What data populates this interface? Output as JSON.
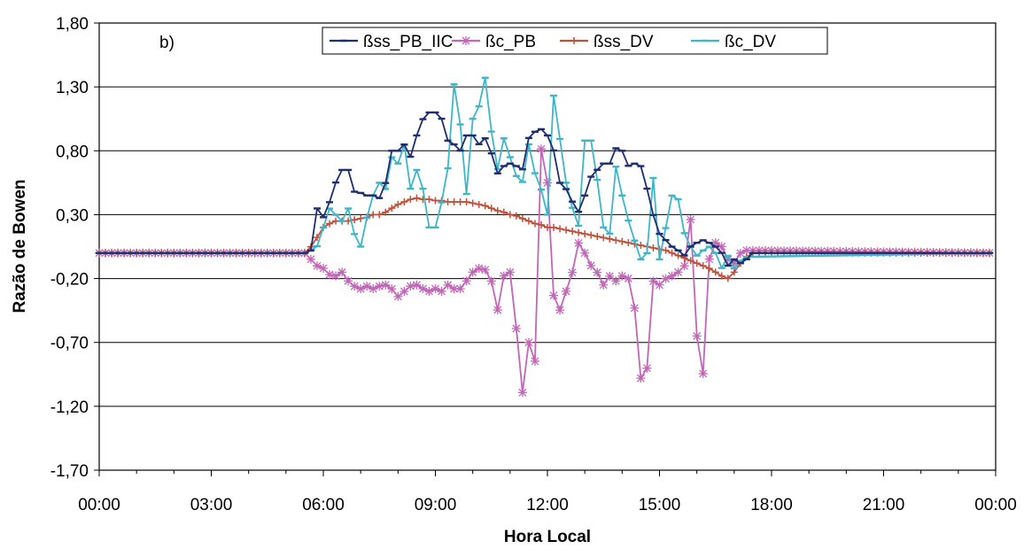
{
  "chart_data": {
    "type": "line",
    "panel_label": "b)",
    "xlabel": "Hora Local",
    "ylabel": "Razão de Bowen",
    "x_ticks": [
      "00:00",
      "03:00",
      "06:00",
      "09:00",
      "12:00",
      "15:00",
      "18:00",
      "21:00",
      "00:00"
    ],
    "y_ticks": [
      "1,80",
      "1,30",
      "0,80",
      "0,30",
      "-0,20",
      "-0,70",
      "-1,20",
      "-1,70"
    ],
    "xlim_hours": [
      0,
      24
    ],
    "ylim": [
      -1.7,
      1.8
    ],
    "grid": "horizontal",
    "legend_position": "top-center",
    "sampling": "10-min intervals, hours from 00:00",
    "series": [
      {
        "name": "ßss_PB_IIC",
        "color": "#1f2e6e",
        "marker": "dash",
        "points": [
          [
            0,
            0
          ],
          [
            5.5,
            0
          ],
          [
            5.67,
            0.02
          ],
          [
            5.83,
            0.35
          ],
          [
            6,
            0.28
          ],
          [
            6.17,
            0.4
          ],
          [
            6.33,
            0.55
          ],
          [
            6.5,
            0.65
          ],
          [
            6.67,
            0.65
          ],
          [
            6.83,
            0.48
          ],
          [
            7,
            0.47
          ],
          [
            7.17,
            0.45
          ],
          [
            7.33,
            0.45
          ],
          [
            7.5,
            0.43
          ],
          [
            7.67,
            0.55
          ],
          [
            7.83,
            0.8
          ],
          [
            8,
            0.8
          ],
          [
            8.17,
            0.85
          ],
          [
            8.33,
            0.75
          ],
          [
            8.5,
            0.92
          ],
          [
            8.67,
            1.05
          ],
          [
            8.83,
            1.1
          ],
          [
            9,
            1.1
          ],
          [
            9.17,
            1.05
          ],
          [
            9.33,
            0.88
          ],
          [
            9.5,
            0.85
          ],
          [
            9.67,
            0.8
          ],
          [
            9.83,
            0.92
          ],
          [
            10,
            0.92
          ],
          [
            10.17,
            0.85
          ],
          [
            10.33,
            0.9
          ],
          [
            10.5,
            0.78
          ],
          [
            10.67,
            0.62
          ],
          [
            10.83,
            0.68
          ],
          [
            11,
            0.7
          ],
          [
            11.17,
            0.68
          ],
          [
            11.33,
            0.65
          ],
          [
            11.5,
            0.9
          ],
          [
            11.67,
            0.95
          ],
          [
            11.83,
            0.97
          ],
          [
            12,
            0.92
          ],
          [
            12.17,
            0.8
          ],
          [
            12.33,
            0.55
          ],
          [
            12.5,
            0.5
          ],
          [
            12.67,
            0.4
          ],
          [
            12.83,
            0.32
          ],
          [
            13,
            0.45
          ],
          [
            13.17,
            0.6
          ],
          [
            13.33,
            0.65
          ],
          [
            13.5,
            0.7
          ],
          [
            13.67,
            0.7
          ],
          [
            13.83,
            0.82
          ],
          [
            14,
            0.8
          ],
          [
            14.17,
            0.68
          ],
          [
            14.33,
            0.7
          ],
          [
            14.5,
            0.68
          ],
          [
            14.67,
            0.5
          ],
          [
            14.83,
            0.3
          ],
          [
            15,
            0.15
          ],
          [
            15.17,
            0.1
          ],
          [
            15.33,
            0.05
          ],
          [
            15.5,
            0.02
          ],
          [
            15.67,
            -0.02
          ],
          [
            15.83,
            0.05
          ],
          [
            16,
            0.08
          ],
          [
            16.17,
            0.1
          ],
          [
            16.33,
            0.08
          ],
          [
            16.5,
            0.05
          ],
          [
            16.67,
            0
          ],
          [
            16.83,
            -0.1
          ],
          [
            17,
            -0.05
          ],
          [
            17.17,
            -0.08
          ],
          [
            17.33,
            -0.05
          ],
          [
            17.5,
            0
          ],
          [
            24,
            0
          ]
        ]
      },
      {
        "name": "ßc_PB",
        "color": "#c266b8",
        "marker": "asterisk",
        "points": [
          [
            0,
            0
          ],
          [
            5.5,
            0
          ],
          [
            5.67,
            -0.05
          ],
          [
            5.83,
            -0.1
          ],
          [
            6,
            -0.12
          ],
          [
            6.17,
            -0.17
          ],
          [
            6.33,
            -0.18
          ],
          [
            6.5,
            -0.15
          ],
          [
            6.67,
            -0.22
          ],
          [
            6.83,
            -0.26
          ],
          [
            7,
            -0.28
          ],
          [
            7.17,
            -0.26
          ],
          [
            7.33,
            -0.28
          ],
          [
            7.5,
            -0.26
          ],
          [
            7.67,
            -0.25
          ],
          [
            7.83,
            -0.28
          ],
          [
            8,
            -0.34
          ],
          [
            8.17,
            -0.3
          ],
          [
            8.33,
            -0.26
          ],
          [
            8.5,
            -0.25
          ],
          [
            8.67,
            -0.28
          ],
          [
            8.83,
            -0.3
          ],
          [
            9,
            -0.28
          ],
          [
            9.17,
            -0.3
          ],
          [
            9.33,
            -0.25
          ],
          [
            9.5,
            -0.28
          ],
          [
            9.67,
            -0.28
          ],
          [
            9.83,
            -0.22
          ],
          [
            10,
            -0.15
          ],
          [
            10.17,
            -0.12
          ],
          [
            10.33,
            -0.13
          ],
          [
            10.5,
            -0.22
          ],
          [
            10.67,
            -0.45
          ],
          [
            10.83,
            -0.18
          ],
          [
            11,
            -0.15
          ],
          [
            11.17,
            -0.6
          ],
          [
            11.33,
            -1.1
          ],
          [
            11.5,
            -0.7
          ],
          [
            11.67,
            -0.85
          ],
          [
            11.83,
            0.82
          ],
          [
            12,
            0.55
          ],
          [
            12.17,
            -0.35
          ],
          [
            12.33,
            -0.45
          ],
          [
            12.5,
            -0.3
          ],
          [
            12.67,
            -0.15
          ],
          [
            12.83,
            0.08
          ],
          [
            13,
            0
          ],
          [
            13.17,
            -0.1
          ],
          [
            13.33,
            -0.15
          ],
          [
            13.5,
            -0.25
          ],
          [
            13.67,
            -0.18
          ],
          [
            13.83,
            -0.22
          ],
          [
            14,
            -0.18
          ],
          [
            14.17,
            -0.2
          ],
          [
            14.33,
            -0.42
          ],
          [
            14.5,
            -0.98
          ],
          [
            14.67,
            -0.9
          ],
          [
            14.83,
            -0.22
          ],
          [
            15,
            -0.25
          ],
          [
            15.17,
            -0.2
          ],
          [
            15.33,
            -0.18
          ],
          [
            15.5,
            -0.15
          ],
          [
            15.67,
            -0.1
          ],
          [
            15.83,
            0.28
          ],
          [
            16,
            -0.65
          ],
          [
            16.17,
            -0.95
          ],
          [
            16.33,
            -0.05
          ],
          [
            16.5,
            0.08
          ],
          [
            16.67,
            0.05
          ],
          [
            16.83,
            -0.05
          ],
          [
            17,
            -0.08
          ],
          [
            17.17,
            0
          ],
          [
            17.33,
            0.02
          ],
          [
            24,
            0
          ]
        ]
      },
      {
        "name": "ßss_DV",
        "color": "#c0503a",
        "marker": "plus",
        "points": [
          [
            0,
            0
          ],
          [
            5.5,
            0
          ],
          [
            5.67,
            0.05
          ],
          [
            5.83,
            0.12
          ],
          [
            6,
            0.2
          ],
          [
            6.17,
            0.23
          ],
          [
            6.33,
            0.25
          ],
          [
            6.5,
            0.25
          ],
          [
            6.67,
            0.25
          ],
          [
            6.83,
            0.26
          ],
          [
            7,
            0.27
          ],
          [
            7.17,
            0.28
          ],
          [
            7.33,
            0.3
          ],
          [
            7.5,
            0.3
          ],
          [
            7.67,
            0.32
          ],
          [
            7.83,
            0.35
          ],
          [
            8,
            0.38
          ],
          [
            8.17,
            0.4
          ],
          [
            8.33,
            0.42
          ],
          [
            8.5,
            0.43
          ],
          [
            8.67,
            0.42
          ],
          [
            8.83,
            0.42
          ],
          [
            9,
            0.41
          ],
          [
            9.17,
            0.41
          ],
          [
            9.33,
            0.4
          ],
          [
            9.5,
            0.4
          ],
          [
            9.67,
            0.4
          ],
          [
            9.83,
            0.4
          ],
          [
            10,
            0.39
          ],
          [
            10.17,
            0.38
          ],
          [
            10.33,
            0.37
          ],
          [
            10.5,
            0.35
          ],
          [
            10.67,
            0.33
          ],
          [
            10.83,
            0.32
          ],
          [
            11,
            0.3
          ],
          [
            11.17,
            0.29
          ],
          [
            11.33,
            0.27
          ],
          [
            11.5,
            0.25
          ],
          [
            11.67,
            0.23
          ],
          [
            11.83,
            0.22
          ],
          [
            12,
            0.2
          ],
          [
            12.17,
            0.2
          ],
          [
            12.33,
            0.19
          ],
          [
            12.5,
            0.18
          ],
          [
            12.67,
            0.17
          ],
          [
            12.83,
            0.16
          ],
          [
            13,
            0.15
          ],
          [
            13.17,
            0.14
          ],
          [
            13.33,
            0.13
          ],
          [
            13.5,
            0.12
          ],
          [
            13.67,
            0.11
          ],
          [
            13.83,
            0.1
          ],
          [
            14,
            0.09
          ],
          [
            14.17,
            0.08
          ],
          [
            14.33,
            0.07
          ],
          [
            14.5,
            0.06
          ],
          [
            14.67,
            0.05
          ],
          [
            14.83,
            0.04
          ],
          [
            15,
            0.03
          ],
          [
            15.17,
            0.02
          ],
          [
            15.33,
            0
          ],
          [
            15.5,
            -0.02
          ],
          [
            15.67,
            -0.04
          ],
          [
            15.83,
            -0.06
          ],
          [
            16,
            -0.08
          ],
          [
            16.17,
            -0.1
          ],
          [
            16.33,
            -0.12
          ],
          [
            16.5,
            -0.15
          ],
          [
            16.67,
            -0.18
          ],
          [
            16.83,
            -0.2
          ],
          [
            17,
            -0.15
          ],
          [
            17.17,
            -0.08
          ],
          [
            17.33,
            -0.03
          ],
          [
            17.5,
            0
          ],
          [
            24,
            0
          ]
        ]
      },
      {
        "name": "ßc_DV",
        "color": "#3fb6c8",
        "marker": "dash",
        "points": [
          [
            0,
            0
          ],
          [
            5.5,
            0
          ],
          [
            5.67,
            0.02
          ],
          [
            5.83,
            0.05
          ],
          [
            6,
            0.2
          ],
          [
            6.17,
            0.35
          ],
          [
            6.33,
            0.3
          ],
          [
            6.5,
            0.25
          ],
          [
            6.67,
            0.35
          ],
          [
            6.83,
            0.15
          ],
          [
            7,
            0.05
          ],
          [
            7.17,
            0.28
          ],
          [
            7.33,
            0.45
          ],
          [
            7.5,
            0.55
          ],
          [
            7.67,
            0.5
          ],
          [
            7.83,
            0.75
          ],
          [
            8,
            0.7
          ],
          [
            8.17,
            0.85
          ],
          [
            8.33,
            0.5
          ],
          [
            8.5,
            0.65
          ],
          [
            8.67,
            0.5
          ],
          [
            8.83,
            0.2
          ],
          [
            9,
            0.2
          ],
          [
            9.17,
            0.4
          ],
          [
            9.33,
            0.65
          ],
          [
            9.5,
            1.32
          ],
          [
            9.67,
            1
          ],
          [
            9.83,
            0.45
          ],
          [
            10,
            1.05
          ],
          [
            10.17,
            1.15
          ],
          [
            10.33,
            1.38
          ],
          [
            10.5,
            0.95
          ],
          [
            10.67,
            0.65
          ],
          [
            10.83,
            0.9
          ],
          [
            11,
            0.75
          ],
          [
            11.17,
            0.6
          ],
          [
            11.33,
            0.55
          ],
          [
            11.5,
            0.85
          ],
          [
            11.67,
            0.62
          ],
          [
            11.83,
            0.5
          ],
          [
            12,
            0.3
          ],
          [
            12.17,
            1.25
          ],
          [
            12.33,
            0.9
          ],
          [
            12.5,
            0.55
          ],
          [
            12.67,
            0.35
          ],
          [
            12.83,
            0.2
          ],
          [
            13,
            0.88
          ],
          [
            13.17,
            0.88
          ],
          [
            13.33,
            0.58
          ],
          [
            13.5,
            0.2
          ],
          [
            13.67,
            0.15
          ],
          [
            13.83,
            0.68
          ],
          [
            14,
            0.45
          ],
          [
            14.17,
            0.25
          ],
          [
            14.33,
            0.1
          ],
          [
            14.5,
            -0.05
          ],
          [
            14.67,
            0
          ],
          [
            14.83,
            0.6
          ],
          [
            15,
            -0.05
          ],
          [
            15.17,
            0.2
          ],
          [
            15.33,
            0.45
          ],
          [
            15.5,
            0.42
          ],
          [
            15.67,
            0.15
          ],
          [
            15.83,
            0.05
          ],
          [
            16,
            -0.02
          ],
          [
            16.17,
            0.02
          ],
          [
            16.33,
            0.05
          ],
          [
            16.5,
            0
          ],
          [
            16.67,
            -0.12
          ],
          [
            16.83,
            -0.02
          ],
          [
            17,
            -0.12
          ],
          [
            17.17,
            -0.06
          ],
          [
            17.33,
            -0.03
          ],
          [
            24,
            0
          ]
        ]
      }
    ]
  }
}
